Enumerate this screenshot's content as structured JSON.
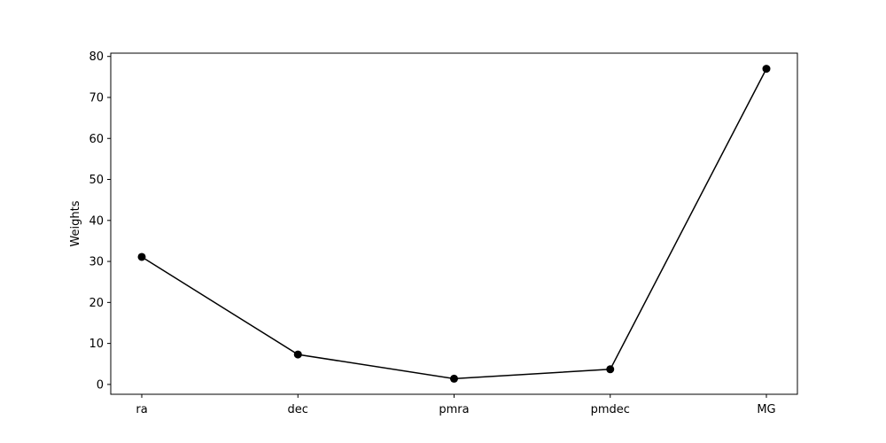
{
  "chart_data": {
    "type": "line",
    "title": "",
    "xlabel": "",
    "ylabel": "Weights",
    "categories": [
      "ra",
      "dec",
      "pmra",
      "pmdec",
      "MG"
    ],
    "series": [
      {
        "values": [
          31.1,
          7.3,
          1.4,
          3.7,
          77.0
        ]
      }
    ],
    "ylim": [
      -2.4,
      80.8
    ],
    "yticks": [
      0,
      10,
      20,
      30,
      40,
      50,
      60,
      70,
      80
    ],
    "grid": false,
    "markers": true,
    "colors": {
      "line": "#000000",
      "marker": "#000000"
    }
  }
}
